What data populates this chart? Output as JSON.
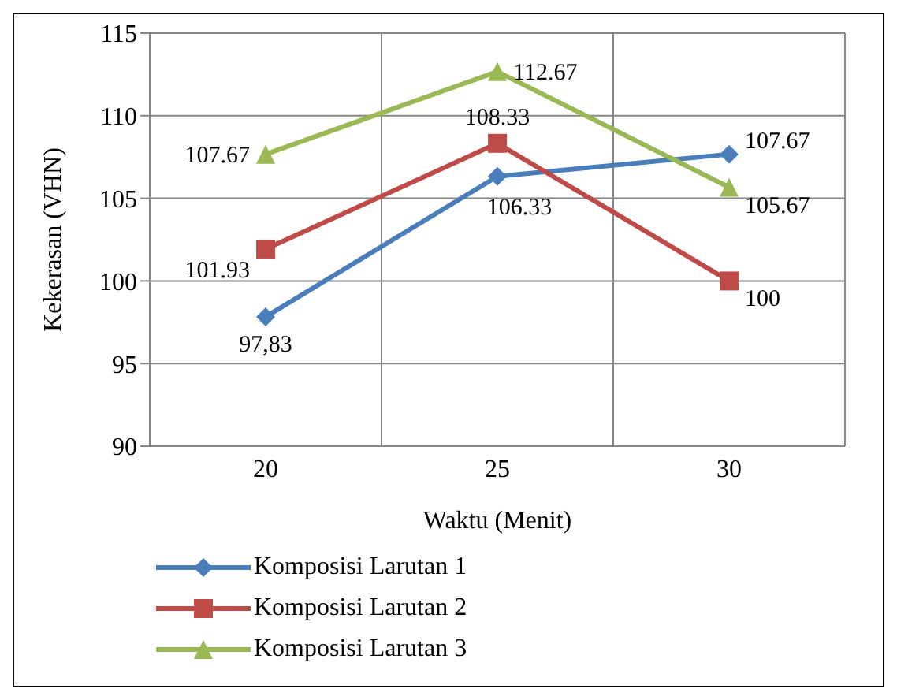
{
  "chart_data": {
    "type": "line",
    "xlabel": "Waktu (Menit)",
    "ylabel": "Kekerasan (VHN)",
    "categories": [
      "20",
      "25",
      "30"
    ],
    "series": [
      {
        "name": "Komposisi Larutan 1",
        "color": "#4a7ebb",
        "marker": "diamond",
        "values": [
          97.83,
          106.33,
          107.67
        ],
        "value_labels": [
          "97,83",
          "106.33",
          "107.67"
        ]
      },
      {
        "name": "Komposisi Larutan 2",
        "color": "#be4b48",
        "marker": "square",
        "values": [
          101.93,
          108.33,
          100
        ],
        "value_labels": [
          "101.93",
          "108.33",
          "100"
        ]
      },
      {
        "name": "Komposisi Larutan 3",
        "color": "#98b954",
        "marker": "triangle",
        "values": [
          107.67,
          112.67,
          105.67
        ],
        "value_labels": [
          "107.67",
          "112.67",
          "105.67"
        ]
      }
    ],
    "ylim": [
      90,
      115
    ],
    "yticks": [
      90,
      95,
      100,
      105,
      110,
      115
    ],
    "grid": true,
    "legend": "bottom"
  }
}
